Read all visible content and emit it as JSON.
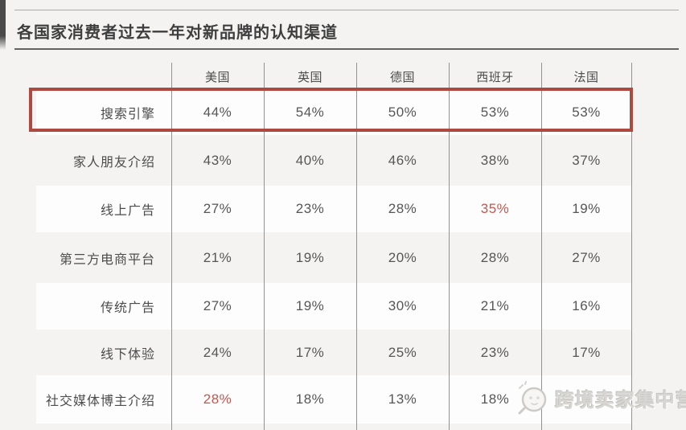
{
  "title": "各国家消费者过去一年对新品牌的认知渠道",
  "table": {
    "columns": [
      "美国",
      "英国",
      "德国",
      "西班牙",
      "法国"
    ],
    "rows": [
      {
        "label": "搜索引擎",
        "values": [
          "44%",
          "54%",
          "50%",
          "53%",
          "53%"
        ],
        "red_cols": [],
        "highlighted": true
      },
      {
        "label": "家人朋友介绍",
        "values": [
          "43%",
          "40%",
          "46%",
          "38%",
          "37%"
        ],
        "red_cols": []
      },
      {
        "label": "线上广告",
        "values": [
          "27%",
          "23%",
          "28%",
          "35%",
          "19%"
        ],
        "red_cols": [
          3
        ]
      },
      {
        "label": "第三方电商平台",
        "values": [
          "21%",
          "19%",
          "20%",
          "28%",
          "27%"
        ],
        "red_cols": []
      },
      {
        "label": "传统广告",
        "values": [
          "27%",
          "19%",
          "30%",
          "21%",
          "16%"
        ],
        "red_cols": []
      },
      {
        "label": "线下体验",
        "values": [
          "24%",
          "17%",
          "25%",
          "23%",
          "17%"
        ],
        "red_cols": []
      },
      {
        "label": "社交媒体博主介绍",
        "values": [
          "28%",
          "18%",
          "13%",
          "18%",
          ""
        ],
        "red_cols": [
          0
        ]
      }
    ]
  },
  "watermark": {
    "text": "跨境卖家集中营",
    "icon": "magnifier-face-icon"
  },
  "colors": {
    "page_bg": "#f4f3f1",
    "row_band_white": "#fdfdfd",
    "divider_gray": "#929292",
    "accent_red_border": "#ac4a41",
    "accent_red_text": "#c3574e",
    "text_dark": "#4c4c4c",
    "watermark_gray": "#d7d6d2"
  },
  "layout_meta": {
    "highlight_note": "red box around search-engine row",
    "hidden_cell_note": "last row France value obscured by watermark"
  }
}
